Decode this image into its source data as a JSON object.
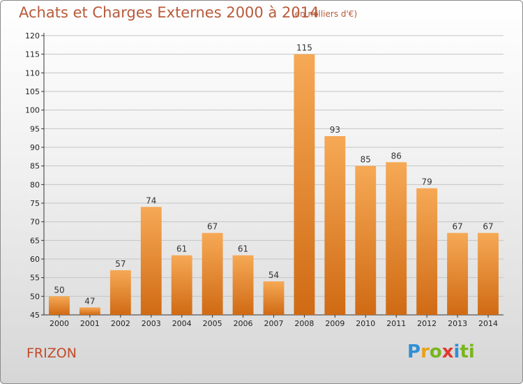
{
  "header": {
    "title": "Achats et Charges Externes 2000 à 2014",
    "unit": "(en milliers d'€)"
  },
  "footer": {
    "commune": "FRIZON",
    "logo_letters": [
      "P",
      "r",
      "o",
      "x",
      "i",
      "ti"
    ]
  },
  "colors": {
    "bar_light": "#f6a955",
    "bar_dark": "#d06a14",
    "title": "#b85a3a",
    "commune": "#c24a2a"
  },
  "chart_data": {
    "type": "bar",
    "title": "Achats et Charges Externes 2000 à 2014",
    "subtitle": "(en milliers d'€)",
    "categories": [
      "2000",
      "2001",
      "2002",
      "2003",
      "2004",
      "2005",
      "2006",
      "2007",
      "2008",
      "2009",
      "2010",
      "2011",
      "2012",
      "2013",
      "2014"
    ],
    "values": [
      50,
      47,
      57,
      74,
      61,
      67,
      61,
      54,
      115,
      93,
      85,
      86,
      79,
      67,
      67
    ],
    "ylim": [
      45,
      120
    ],
    "yticks": [
      45,
      50,
      55,
      60,
      65,
      70,
      75,
      80,
      85,
      90,
      95,
      100,
      105,
      110,
      115,
      120
    ],
    "grid": true,
    "legend": "none"
  }
}
